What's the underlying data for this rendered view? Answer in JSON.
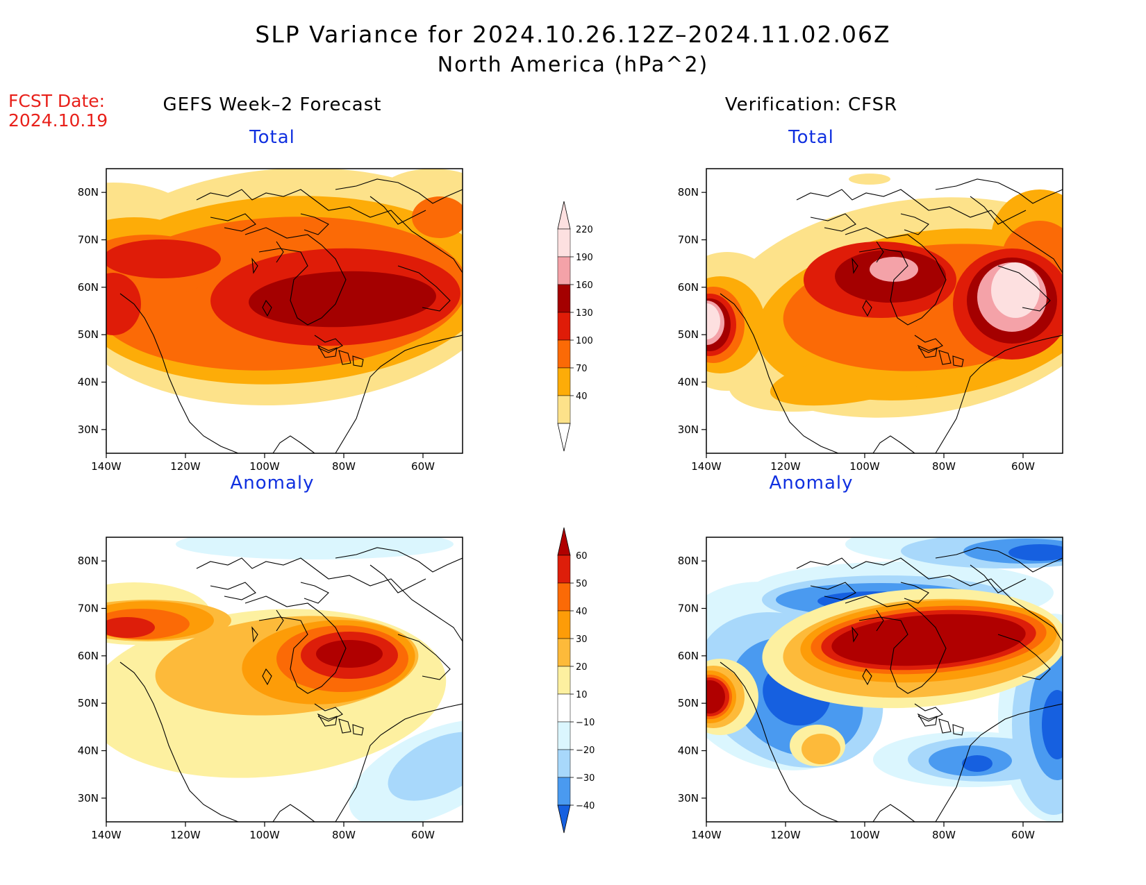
{
  "title": "SLP Variance for 2024.10.26.12Z–2024.11.02.06Z",
  "subtitle": "North America (hPa^2)",
  "fcst_date_label": "FCST Date:",
  "fcst_date_value": "2024.10.19",
  "columns": [
    {
      "title": "GEFS Week–2 Forecast"
    },
    {
      "title": "Verification: CFSR"
    }
  ],
  "panels": [
    {
      "title": "Total",
      "column": "GEFS Week-2 Forecast",
      "field": "total"
    },
    {
      "title": "Total",
      "column": "Verification: CFSR",
      "field": "total"
    },
    {
      "title": "Anomaly",
      "column": "GEFS Week-2 Forecast",
      "field": "anomaly"
    },
    {
      "title": "Anomaly",
      "column": "Verification: CFSR",
      "field": "anomaly"
    }
  ],
  "axes": {
    "lat_labels": [
      "80N",
      "70N",
      "60N",
      "50N",
      "40N",
      "30N"
    ],
    "lat_values": [
      80,
      70,
      60,
      50,
      40,
      30
    ],
    "lon_labels": [
      "140W",
      "120W",
      "100W",
      "80W",
      "60W"
    ],
    "lon_values": [
      -140,
      -120,
      -100,
      -80,
      -60
    ],
    "lat_range": [
      25,
      85
    ],
    "lon_range": [
      -140,
      -50
    ]
  },
  "colorbars": {
    "total": {
      "labels": [
        "40",
        "70",
        "100",
        "130",
        "160",
        "190",
        "220"
      ],
      "colors": [
        "#fde28a",
        "#fdac08",
        "#fb6a06",
        "#df1c08",
        "#a40000",
        "#f4a2a8",
        "#fde0e0"
      ],
      "below_color": "#ffffff"
    },
    "anomaly": {
      "labels": [
        "60",
        "50",
        "40",
        "30",
        "20",
        "10",
        "−10",
        "−20",
        "−30",
        "−40"
      ],
      "colors_top_to_bottom": [
        "#b00000",
        "#dd1e0a",
        "#fb6a06",
        "#fd9c08",
        "#fdba3a",
        "#fdf0a0",
        "#ffffff",
        "#dbf6fe",
        "#a8d8fb",
        "#4a9af0",
        "#1660e0"
      ]
    }
  },
  "colors": {
    "title_blue": "#1030e0",
    "fcst_red": "#e8201a"
  }
}
